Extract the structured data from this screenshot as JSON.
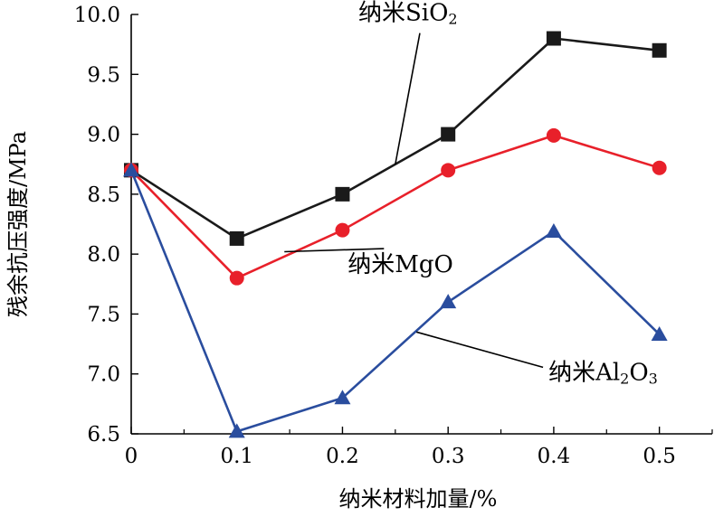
{
  "chart_data": {
    "type": "line",
    "xlabel": "纳米材料加量/%",
    "ylabel": "残余抗压强度/MPa",
    "x": [
      0,
      0.1,
      0.2,
      0.3,
      0.4,
      0.5
    ],
    "x_tick_labels": [
      "0",
      "0.1",
      "0.2",
      "0.3",
      "0.4",
      "0.5"
    ],
    "y_tick_labels": [
      "6.5",
      "7.0",
      "7.5",
      "8.0",
      "8.5",
      "9.0",
      "9.5",
      "10.0"
    ],
    "xlim": [
      0,
      0.55
    ],
    "ylim": [
      6.5,
      10.0
    ],
    "grid": false,
    "legend": "none",
    "series": [
      {
        "name": "纳米SiO",
        "subscript": "2",
        "color": "#1a1a1a",
        "marker": "square",
        "values": [
          8.7,
          8.13,
          8.5,
          9.0,
          9.8,
          9.7
        ]
      },
      {
        "name": "纳米MgO",
        "color": "#e8202a",
        "marker": "circle",
        "values": [
          8.7,
          7.8,
          8.2,
          8.7,
          8.99,
          8.72
        ]
      },
      {
        "name": "纳米Al",
        "subscript": "2",
        "suffix": "O",
        "suffix_sub": "3",
        "color": "#2a4d9e",
        "marker": "triangle",
        "values": [
          8.7,
          6.52,
          6.8,
          7.6,
          8.19,
          7.33
        ]
      }
    ],
    "annotations": [
      {
        "series": 0,
        "point_x": 0.25,
        "point_y": 8.75,
        "label_x": 0.215,
        "label_y": 9.95
      },
      {
        "series": 1,
        "point_x": 0.145,
        "point_y": 8.02,
        "label_x": 0.205,
        "label_y": 7.85
      },
      {
        "series": 2,
        "point_x": 0.27,
        "point_y": 7.35,
        "label_x": 0.395,
        "label_y": 6.95
      }
    ]
  }
}
